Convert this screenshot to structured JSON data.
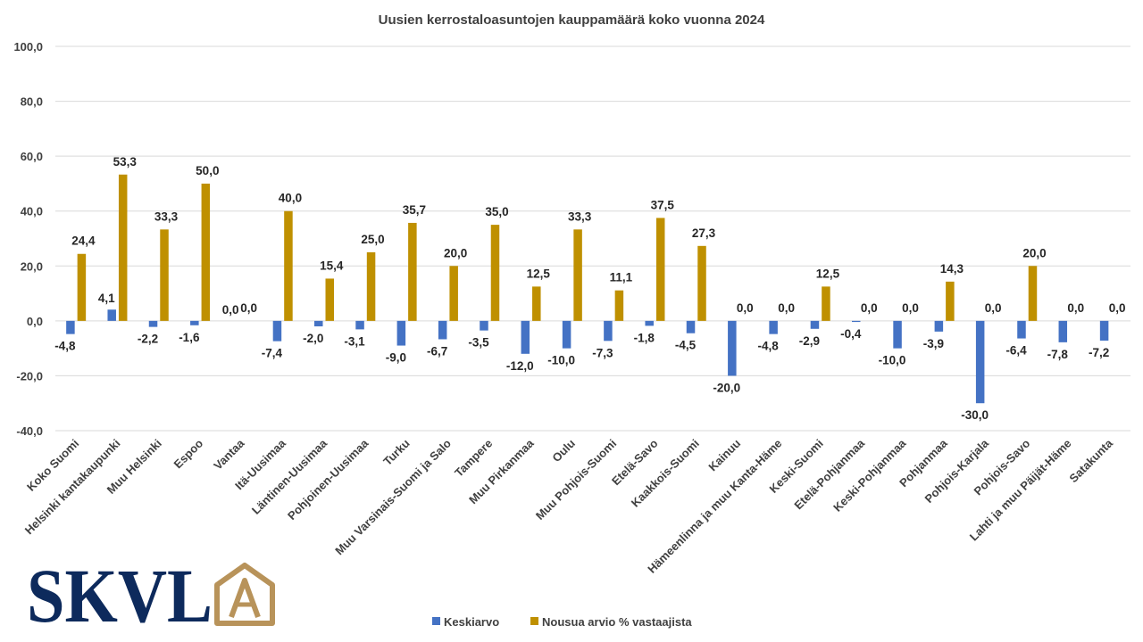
{
  "chart_data": {
    "type": "bar",
    "title": "Uusien kerrostaloasuntojen kauppamäärä  koko vuonna 2024",
    "xlabel": "",
    "ylabel": "",
    "ylim": [
      -40,
      100
    ],
    "yticks": [
      -40,
      -20,
      0,
      20,
      40,
      60,
      80,
      100
    ],
    "ytick_labels": [
      "-40,0",
      "-20,0",
      "0,0",
      "20,0",
      "40,0",
      "60,0",
      "80,0",
      "100,0"
    ],
    "grid": true,
    "legend_position": "bottom",
    "categories": [
      "Koko Suomi",
      "Helsinki kantakaupunki",
      "Muu Helsinki",
      "Espoo",
      "Vantaa",
      "Itä-Uusimaa",
      "Läntinen-Uusimaa",
      "Pohjoinen-Uusimaa",
      "Turku",
      "Muu Varsinais-Suomi ja Salo",
      "Tampere",
      "Muu Pirkanmaa",
      "Oulu",
      "Muu Pohjois-Suomi",
      "Etelä-Savo",
      "Kaakkois-Suomi",
      "Kainuu",
      "Hämeenlinna ja muu Kanta-Häme",
      "Keski-Suomi",
      "Etelä-Pohjanmaa",
      "Keski-Pohjanmaa",
      "Pohjanmaa",
      "Pohjois-Karjala",
      "Pohjois-Savo",
      "Lahti ja muu Päijät-Häme",
      "Satakunta"
    ],
    "series": [
      {
        "name": "Keskiarvo",
        "color": "#4472c4",
        "values": [
          -4.8,
          4.1,
          -2.2,
          -1.6,
          0.0,
          -7.4,
          -2.0,
          -3.1,
          -9.0,
          -6.7,
          -3.5,
          -12.0,
          -10.0,
          -7.3,
          -1.8,
          -4.5,
          -20.0,
          -4.8,
          -2.9,
          -0.4,
          -10.0,
          -3.9,
          -30.0,
          -6.4,
          -7.8,
          -7.2
        ],
        "labels": [
          "-4,8",
          "4,1",
          "-2,2",
          "-1,6",
          "0,0",
          "-7,4",
          "-2,0",
          "-3,1",
          "-9,0",
          "-6,7",
          "-3,5",
          "-12,0",
          "-10,0",
          "-7,3",
          "-1,8",
          "-4,5",
          "-20,0",
          "-4,8",
          "-2,9",
          "-0,4",
          "-10,0",
          "-3,9",
          "-30,0",
          "-6,4",
          "-7,8",
          "-7,2"
        ]
      },
      {
        "name": "Nousua arvio % vastaajista",
        "color": "#bf9000",
        "values": [
          24.4,
          53.3,
          33.3,
          50.0,
          0.0,
          40.0,
          15.4,
          25.0,
          35.7,
          20.0,
          35.0,
          12.5,
          33.3,
          11.1,
          37.5,
          27.3,
          0.0,
          0.0,
          12.5,
          0.0,
          0.0,
          14.3,
          0.0,
          20.0,
          0.0,
          0.0
        ],
        "labels": [
          "24,4",
          "53,3",
          "33,3",
          "50,0",
          "0,0",
          "40,0",
          "15,4",
          "25,0",
          "35,7",
          "20,0",
          "35,0",
          "12,5",
          "33,3",
          "11,1",
          "37,5",
          "27,3",
          "0,0",
          "0,0",
          "12,5",
          "0,0",
          "0,0",
          "14,3",
          "0,0",
          "20,0",
          "0,0",
          "0,0"
        ]
      }
    ]
  },
  "logo": {
    "text": "SKVL",
    "mark": "A",
    "text_color": "#0d2a5c",
    "mark_color": "#b8935a"
  }
}
